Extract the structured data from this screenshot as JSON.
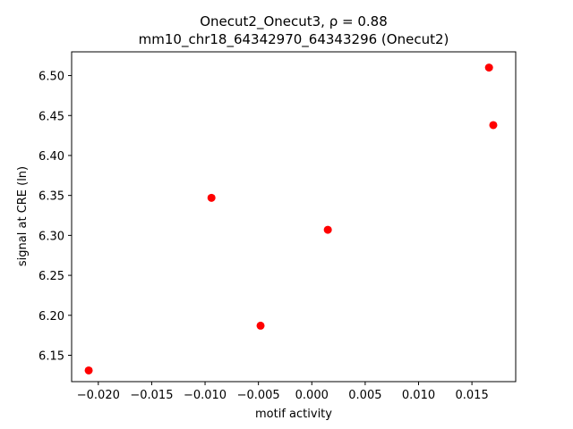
{
  "chart_data": {
    "type": "scatter",
    "title_line1": "Onecut2_Onecut3, ρ = 0.88",
    "title_line2": "mm10_chr18_64342970_64343296 (Onecut2)",
    "xlabel": "motif activity",
    "ylabel": "signal at CRE (ln)",
    "x_ticks": [
      "−0.020",
      "−0.015",
      "−0.010",
      "−0.005",
      "0.000",
      "0.005",
      "0.010",
      "0.015"
    ],
    "y_ticks": [
      "6.15",
      "6.20",
      "6.25",
      "6.30",
      "6.35",
      "6.40",
      "6.45",
      "6.50"
    ],
    "xlim": [
      -0.0225,
      0.0191
    ],
    "ylim": [
      6.117,
      6.5297
    ],
    "point_color": "#ff0000",
    "points": [
      {
        "x": -0.0209,
        "y": 6.131
      },
      {
        "x": -0.0094,
        "y": 6.347
      },
      {
        "x": -0.0048,
        "y": 6.187
      },
      {
        "x": 0.0015,
        "y": 6.307
      },
      {
        "x": 0.0166,
        "y": 6.51
      },
      {
        "x": 0.017,
        "y": 6.438
      }
    ],
    "grid": false,
    "legend": "none"
  }
}
